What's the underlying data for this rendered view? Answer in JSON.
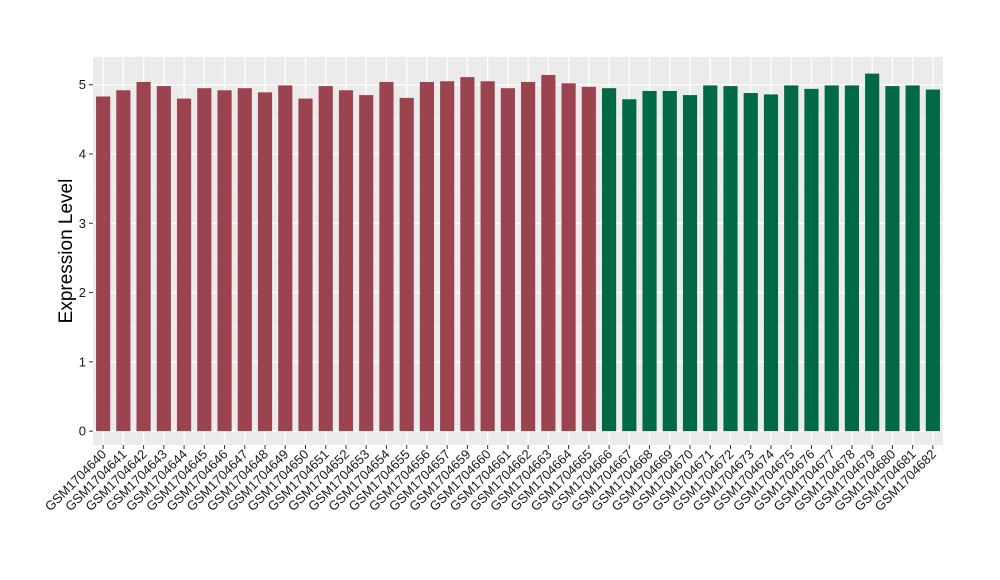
{
  "chart_data": {
    "type": "bar",
    "title": "",
    "xlabel": "",
    "ylabel": "Expression Level",
    "ylim": [
      -0.2,
      5.4
    ],
    "yticks": [
      0,
      1,
      2,
      3,
      4,
      5
    ],
    "grid": true,
    "legend": "none",
    "panel_color": "#ebebeb",
    "groups": [
      {
        "color": "#9b4450",
        "count": 25
      },
      {
        "color": "#016943",
        "count": 17
      }
    ],
    "categories": [
      "GSM1704640",
      "GSM1704641",
      "GSM1704642",
      "GSM1704643",
      "GSM1704644",
      "GSM1704645",
      "GSM1704646",
      "GSM1704647",
      "GSM1704648",
      "GSM1704649",
      "GSM1704650",
      "GSM1704651",
      "GSM1704652",
      "GSM1704653",
      "GSM1704654",
      "GSM1704655",
      "GSM1704656",
      "GSM1704657",
      "GSM1704659",
      "GSM1704660",
      "GSM1704661",
      "GSM1704662",
      "GSM1704663",
      "GSM1704664",
      "GSM1704665",
      "GSM1704666",
      "GSM1704667",
      "GSM1704668",
      "GSM1704669",
      "GSM1704670",
      "GSM1704671",
      "GSM1704672",
      "GSM1704673",
      "GSM1704674",
      "GSM1704675",
      "GSM1704676",
      "GSM1704677",
      "GSM1704678",
      "GSM1704679",
      "GSM1704680",
      "GSM1704681",
      "GSM1704682"
    ],
    "values": [
      4.83,
      4.92,
      5.04,
      4.98,
      4.8,
      4.95,
      4.92,
      4.95,
      4.89,
      4.99,
      4.8,
      4.98,
      4.92,
      4.85,
      5.04,
      4.81,
      5.04,
      5.05,
      5.11,
      5.05,
      4.95,
      5.04,
      5.14,
      5.02,
      4.97,
      4.95,
      4.79,
      4.91,
      4.91,
      4.85,
      4.99,
      4.98,
      4.88,
      4.86,
      4.99,
      4.94,
      4.99,
      4.99,
      5.16,
      4.98,
      4.99,
      4.93
    ]
  }
}
